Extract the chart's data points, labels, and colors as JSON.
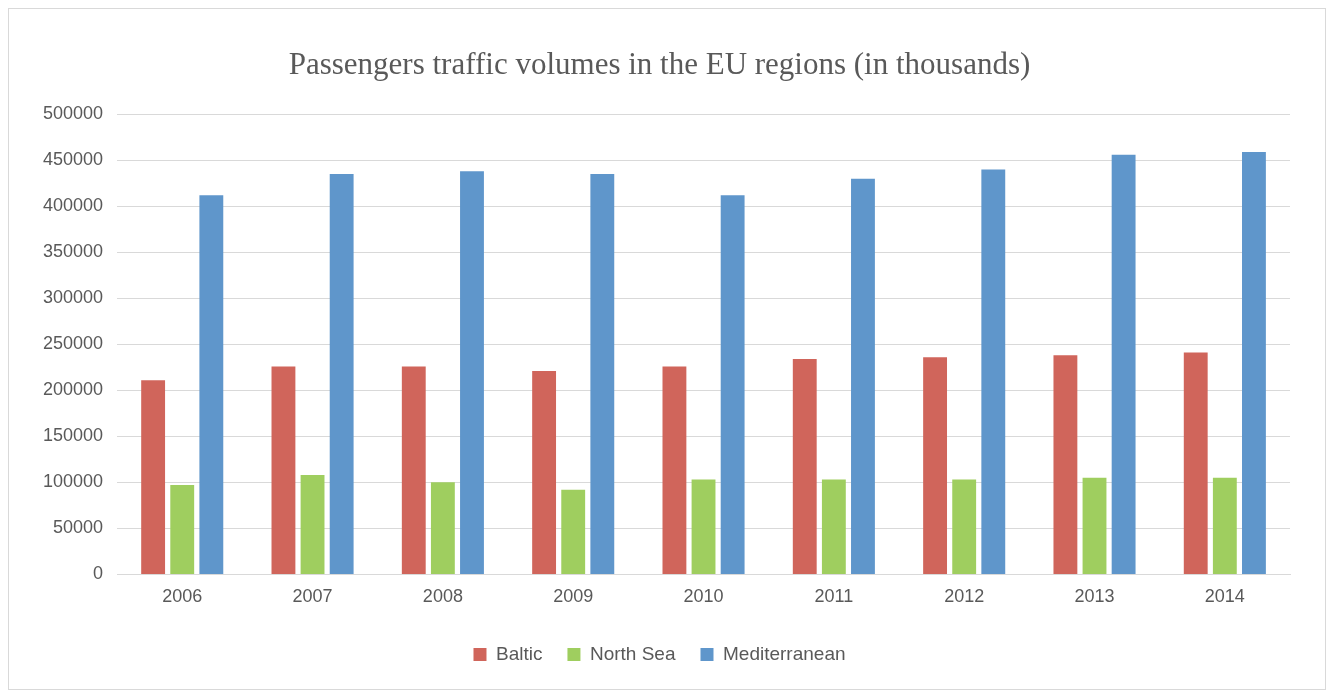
{
  "chart_data": {
    "type": "bar",
    "title": "Passengers traffic volumes in the EU regions (in thousands)",
    "categories": [
      "2006",
      "2007",
      "2008",
      "2009",
      "2010",
      "2011",
      "2012",
      "2013",
      "2014"
    ],
    "series": [
      {
        "name": "Baltic",
        "color": "#d0655b",
        "values": [
          211000,
          226000,
          226000,
          221000,
          226000,
          234000,
          236000,
          238000,
          241000
        ]
      },
      {
        "name": "North Sea",
        "color": "#9fce5f",
        "values": [
          97000,
          108000,
          100000,
          92000,
          103000,
          103000,
          103000,
          105000,
          105000
        ]
      },
      {
        "name": "Mediterranean",
        "color": "#5f96cb",
        "values": [
          412000,
          435000,
          438000,
          435000,
          412000,
          430000,
          440000,
          456000,
          459000
        ]
      }
    ],
    "ylim": [
      0,
      500000
    ],
    "yticks": [
      0,
      50000,
      100000,
      150000,
      200000,
      250000,
      300000,
      350000,
      400000,
      450000,
      500000
    ],
    "grid": "y",
    "legend": "bottom"
  }
}
